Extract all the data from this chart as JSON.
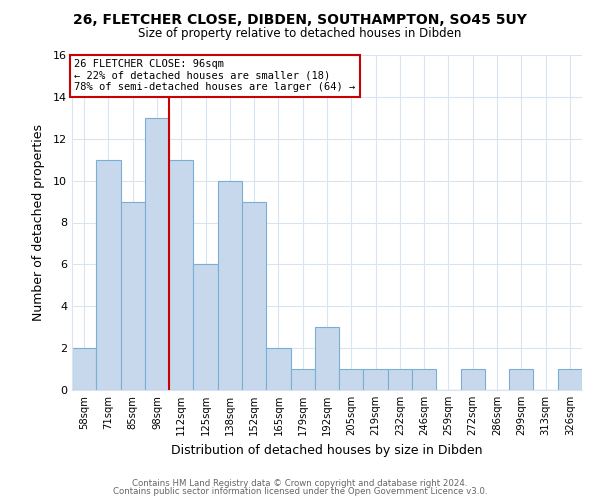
{
  "title": "26, FLETCHER CLOSE, DIBDEN, SOUTHAMPTON, SO45 5UY",
  "subtitle": "Size of property relative to detached houses in Dibden",
  "xlabel": "Distribution of detached houses by size in Dibden",
  "ylabel": "Number of detached properties",
  "footer_line1": "Contains HM Land Registry data © Crown copyright and database right 2024.",
  "footer_line2": "Contains public sector information licensed under the Open Government Licence v3.0.",
  "bin_labels": [
    "58sqm",
    "71sqm",
    "85sqm",
    "98sqm",
    "112sqm",
    "125sqm",
    "138sqm",
    "152sqm",
    "165sqm",
    "179sqm",
    "192sqm",
    "205sqm",
    "219sqm",
    "232sqm",
    "246sqm",
    "259sqm",
    "272sqm",
    "286sqm",
    "299sqm",
    "313sqm",
    "326sqm"
  ],
  "bar_values": [
    2,
    11,
    9,
    13,
    11,
    6,
    10,
    9,
    2,
    1,
    3,
    1,
    1,
    1,
    1,
    0,
    1,
    0,
    1,
    0,
    1
  ],
  "bar_color": "#c8d8ec",
  "bar_edge_color": "#7aaed4",
  "property_line_x": 3.5,
  "annotation_title": "26 FLETCHER CLOSE: 96sqm",
  "annotation_line1": "← 22% of detached houses are smaller (18)",
  "annotation_line2": "78% of semi-detached houses are larger (64) →",
  "annotation_box_color": "#ffffff",
  "annotation_box_edge": "#cc0000",
  "line_color": "#cc0000",
  "ylim": [
    0,
    16
  ],
  "yticks": [
    0,
    2,
    4,
    6,
    8,
    10,
    12,
    14,
    16
  ],
  "background_color": "#ffffff",
  "grid_color": "#d8e4f0",
  "title_color": "#000000",
  "footer_color": "#666666"
}
